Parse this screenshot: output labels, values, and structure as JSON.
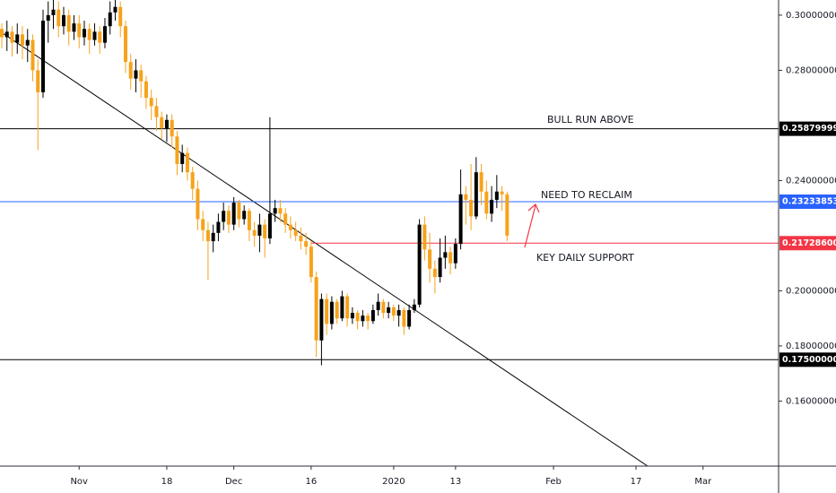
{
  "chart_data": {
    "type": "candlestick",
    "x": [
      "2019-10-17",
      "2019-10-18",
      "2019-10-19",
      "2019-10-20",
      "2019-10-21",
      "2019-10-22",
      "2019-10-23",
      "2019-10-24",
      "2019-10-25",
      "2019-10-26",
      "2019-10-27",
      "2019-10-28",
      "2019-10-29",
      "2019-10-30",
      "2019-10-31",
      "2019-11-01",
      "2019-11-02",
      "2019-11-03",
      "2019-11-04",
      "2019-11-05",
      "2019-11-06",
      "2019-11-07",
      "2019-11-08",
      "2019-11-09",
      "2019-11-10",
      "2019-11-11",
      "2019-11-12",
      "2019-11-13",
      "2019-11-14",
      "2019-11-15",
      "2019-11-16",
      "2019-11-17",
      "2019-11-18",
      "2019-11-19",
      "2019-11-20",
      "2019-11-21",
      "2019-11-22",
      "2019-11-23",
      "2019-11-24",
      "2019-11-25",
      "2019-11-26",
      "2019-11-27",
      "2019-11-28",
      "2019-11-29",
      "2019-11-30",
      "2019-12-01",
      "2019-12-02",
      "2019-12-03",
      "2019-12-04",
      "2019-12-05",
      "2019-12-06",
      "2019-12-07",
      "2019-12-08",
      "2019-12-09",
      "2019-12-10",
      "2019-12-11",
      "2019-12-12",
      "2019-12-13",
      "2019-12-14",
      "2019-12-15",
      "2019-12-16",
      "2019-12-17",
      "2019-12-18",
      "2019-12-19",
      "2019-12-20",
      "2019-12-21",
      "2019-12-22",
      "2019-12-23",
      "2019-12-24",
      "2019-12-25",
      "2019-12-26",
      "2019-12-27",
      "2019-12-28",
      "2019-12-29",
      "2019-12-30",
      "2019-12-31",
      "2020-01-01",
      "2020-01-02",
      "2020-01-03",
      "2020-01-04",
      "2020-01-05",
      "2020-01-06",
      "2020-01-07",
      "2020-01-08",
      "2020-01-09",
      "2020-01-10",
      "2020-01-11",
      "2020-01-12",
      "2020-01-13",
      "2020-01-14",
      "2020-01-15",
      "2020-01-16",
      "2020-01-17",
      "2020-01-18",
      "2020-01-19",
      "2020-01-20",
      "2020-01-21",
      "2020-01-22",
      "2020-01-23"
    ],
    "open": [
      0.295,
      0.292,
      0.294,
      0.29,
      0.293,
      0.289,
      0.291,
      0.28,
      0.272,
      0.298,
      0.3,
      0.302,
      0.296,
      0.3,
      0.294,
      0.297,
      0.292,
      0.295,
      0.291,
      0.294,
      0.29,
      0.296,
      0.301,
      0.303,
      0.296,
      0.283,
      0.277,
      0.28,
      0.276,
      0.27,
      0.267,
      0.263,
      0.259,
      0.262,
      0.256,
      0.246,
      0.25,
      0.243,
      0.237,
      0.226,
      0.222,
      0.218,
      0.221,
      0.225,
      0.229,
      0.224,
      0.232,
      0.226,
      0.229,
      0.222,
      0.22,
      0.224,
      0.219,
      0.228,
      0.23,
      0.228,
      0.224,
      0.222,
      0.22,
      0.218,
      0.216,
      0.205,
      0.182,
      0.197,
      0.188,
      0.196,
      0.19,
      0.198,
      0.19,
      0.192,
      0.189,
      0.191,
      0.189,
      0.193,
      0.196,
      0.192,
      0.194,
      0.191,
      0.193,
      0.187,
      0.193,
      0.195,
      0.224,
      0.215,
      0.208,
      0.205,
      0.212,
      0.214,
      0.21,
      0.217,
      0.235,
      0.233,
      0.227,
      0.243,
      0.236,
      0.228,
      0.233,
      0.236,
      0.235
    ],
    "high": [
      0.297,
      0.298,
      0.296,
      0.297,
      0.296,
      0.295,
      0.293,
      0.284,
      0.302,
      0.305,
      0.3055,
      0.305,
      0.303,
      0.302,
      0.3,
      0.3,
      0.298,
      0.297,
      0.297,
      0.296,
      0.299,
      0.305,
      0.3055,
      0.305,
      0.298,
      0.286,
      0.284,
      0.282,
      0.278,
      0.273,
      0.27,
      0.265,
      0.264,
      0.264,
      0.258,
      0.253,
      0.252,
      0.245,
      0.24,
      0.229,
      0.225,
      0.224,
      0.228,
      0.232,
      0.231,
      0.234,
      0.233,
      0.231,
      0.23,
      0.225,
      0.228,
      0.226,
      0.263,
      0.233,
      0.233,
      0.23,
      0.227,
      0.225,
      0.223,
      0.221,
      0.218,
      0.207,
      0.199,
      0.199,
      0.198,
      0.197,
      0.2,
      0.199,
      0.194,
      0.193,
      0.193,
      0.192,
      0.195,
      0.199,
      0.197,
      0.196,
      0.195,
      0.195,
      0.194,
      0.195,
      0.197,
      0.226,
      0.227,
      0.221,
      0.211,
      0.219,
      0.22,
      0.216,
      0.219,
      0.244,
      0.238,
      0.246,
      0.2485,
      0.246,
      0.24,
      0.238,
      0.242,
      0.238,
      0.236
    ],
    "low": [
      0.288,
      0.287,
      0.285,
      0.286,
      0.284,
      0.283,
      0.276,
      0.251,
      0.27,
      0.29,
      0.295,
      0.292,
      0.293,
      0.289,
      0.291,
      0.288,
      0.289,
      0.286,
      0.289,
      0.286,
      0.288,
      0.293,
      0.298,
      0.292,
      0.279,
      0.273,
      0.272,
      0.27,
      0.266,
      0.262,
      0.258,
      0.255,
      0.254,
      0.252,
      0.242,
      0.243,
      0.24,
      0.233,
      0.222,
      0.218,
      0.204,
      0.214,
      0.218,
      0.222,
      0.221,
      0.222,
      0.223,
      0.224,
      0.218,
      0.216,
      0.214,
      0.212,
      0.217,
      0.225,
      0.225,
      0.221,
      0.219,
      0.218,
      0.215,
      0.213,
      0.203,
      0.176,
      0.173,
      0.184,
      0.186,
      0.188,
      0.189,
      0.187,
      0.188,
      0.186,
      0.187,
      0.186,
      0.188,
      0.191,
      0.19,
      0.19,
      0.189,
      0.187,
      0.184,
      0.186,
      0.192,
      0.194,
      0.211,
      0.203,
      0.199,
      0.203,
      0.208,
      0.206,
      0.208,
      0.215,
      0.224,
      0.222,
      0.226,
      0.231,
      0.226,
      0.225,
      0.23,
      0.229,
      0.218
    ],
    "close": [
      0.292,
      0.294,
      0.29,
      0.293,
      0.289,
      0.291,
      0.28,
      0.272,
      0.298,
      0.3,
      0.302,
      0.296,
      0.3,
      0.294,
      0.297,
      0.292,
      0.295,
      0.291,
      0.294,
      0.29,
      0.296,
      0.301,
      0.303,
      0.296,
      0.283,
      0.277,
      0.28,
      0.276,
      0.27,
      0.267,
      0.263,
      0.259,
      0.262,
      0.256,
      0.246,
      0.25,
      0.243,
      0.237,
      0.226,
      0.222,
      0.218,
      0.221,
      0.225,
      0.229,
      0.224,
      0.232,
      0.226,
      0.229,
      0.222,
      0.22,
      0.224,
      0.219,
      0.228,
      0.23,
      0.228,
      0.224,
      0.222,
      0.22,
      0.218,
      0.216,
      0.205,
      0.182,
      0.197,
      0.188,
      0.196,
      0.19,
      0.198,
      0.19,
      0.192,
      0.189,
      0.191,
      0.189,
      0.193,
      0.196,
      0.192,
      0.194,
      0.191,
      0.193,
      0.187,
      0.193,
      0.195,
      0.224,
      0.215,
      0.208,
      0.205,
      0.212,
      0.214,
      0.21,
      0.217,
      0.235,
      0.233,
      0.227,
      0.243,
      0.236,
      0.228,
      0.233,
      0.236,
      0.235,
      0.22
    ],
    "up_color": "#000000",
    "down_color": "#f7a21b",
    "xlim": [
      "2019-10-17",
      "2020-03-16"
    ],
    "xticks": [
      {
        "value": "2019-11-01",
        "label": "Nov"
      },
      {
        "value": "2019-11-18",
        "label": "18"
      },
      {
        "value": "2019-12-01",
        "label": "Dec"
      },
      {
        "value": "2019-12-16",
        "label": "16"
      },
      {
        "value": "2020-01-01",
        "label": "2020"
      },
      {
        "value": "2020-01-13",
        "label": "13"
      },
      {
        "value": "2020-02-01",
        "label": "Feb"
      },
      {
        "value": "2020-02-17",
        "label": "17"
      },
      {
        "value": "2020-03-01",
        "label": "Mar"
      }
    ],
    "ylim": [
      0.1364,
      0.3055
    ],
    "yticks": [
      {
        "value": 0.3,
        "label": "0.30000000"
      },
      {
        "value": 0.28,
        "label": "0.28000000"
      },
      {
        "value": 0.24,
        "label": "0.24000000"
      },
      {
        "value": 0.2,
        "label": "0.20000000"
      },
      {
        "value": 0.18,
        "label": "0.18000000"
      },
      {
        "value": 0.16,
        "label": "0.16000000"
      }
    ],
    "levels": [
      {
        "value": 0.25879999,
        "color": "#000000"
      },
      {
        "value": 0.23233853,
        "color": "#2962ff"
      },
      {
        "value": 0.217286,
        "label": "0.21728600",
        "color": "#f23645",
        "from": "2019-12-16"
      },
      {
        "value": 0.175,
        "label": "0.17500000",
        "color": "#000000"
      }
    ],
    "annotations": [
      "BULL RUN ABOVE",
      "NEED TO RECLAIM",
      "KEY DAILY SUPPORT"
    ]
  }
}
